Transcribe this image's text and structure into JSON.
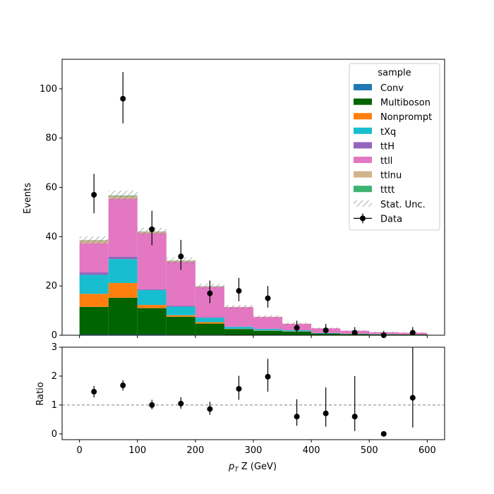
{
  "chart_data": {
    "type": "bar",
    "stacked": true,
    "x_bin_edges": [
      0,
      50,
      100,
      150,
      200,
      250,
      300,
      350,
      400,
      450,
      500,
      550,
      600
    ],
    "series": [
      {
        "name": "Conv",
        "color": "#1f77b4",
        "values": [
          0.3,
          0.3,
          0.3,
          0.2,
          0.2,
          0.1,
          0.1,
          0.1,
          0.0,
          0.0,
          0.0,
          0.0
        ]
      },
      {
        "name": "Multiboson",
        "color": "#006400",
        "values": [
          11.2,
          14.9,
          10.7,
          7.3,
          4.5,
          2.4,
          1.7,
          1.4,
          0.7,
          0.5,
          0.3,
          0.3
        ]
      },
      {
        "name": "Nonprompt",
        "color": "#ff7f0e",
        "values": [
          5.3,
          6.0,
          1.3,
          0.6,
          0.6,
          0.1,
          0.1,
          0.1,
          0.0,
          0.0,
          0.0,
          0.0
        ]
      },
      {
        "name": "tXq",
        "color": "#17becf",
        "values": [
          7.7,
          9.7,
          6.0,
          3.5,
          1.8,
          0.8,
          0.6,
          0.4,
          0.2,
          0.1,
          0.1,
          0.0
        ]
      },
      {
        "name": "ttH",
        "color": "#9467bd",
        "values": [
          1.0,
          1.0,
          0.4,
          0.3,
          0.2,
          0.1,
          0.1,
          0.1,
          0.0,
          0.0,
          0.0,
          0.0
        ]
      },
      {
        "name": "ttll",
        "color": "#e377c2",
        "values": [
          11.8,
          23.5,
          22.7,
          17.9,
          12.3,
          7.9,
          4.8,
          2.5,
          1.9,
          1.2,
          0.8,
          0.7
        ]
      },
      {
        "name": "ttlnu",
        "color": "#d2b48c",
        "values": [
          1.2,
          1.1,
          0.6,
          0.4,
          0.2,
          0.1,
          0.1,
          0.1,
          0.0,
          0.0,
          0.0,
          0.0
        ]
      },
      {
        "name": "tttt",
        "color": "#3cb371",
        "values": [
          0.1,
          0.2,
          0.1,
          0.1,
          0.1,
          0.0,
          0.0,
          0.0,
          0.0,
          0.0,
          0.0,
          0.0
        ]
      }
    ],
    "stat_unc": [
      1.5,
      2.0,
      1.5,
      1.3,
      1.0,
      0.8,
      0.6,
      0.5,
      0.4,
      0.3,
      0.3,
      0.3
    ],
    "data": {
      "name": "Data",
      "x": [
        25,
        75,
        125,
        175,
        225,
        275,
        325,
        375,
        425,
        475,
        525,
        575
      ],
      "y": [
        57,
        96,
        43,
        32,
        17,
        18,
        15,
        3,
        2,
        1,
        0,
        1
      ],
      "yerr_low": [
        7.5,
        10.0,
        6.5,
        5.5,
        4.0,
        4.2,
        3.8,
        1.6,
        1.3,
        1.0,
        0.0,
        1.0
      ],
      "yerr_high": [
        8.5,
        10.8,
        7.5,
        6.7,
        5.2,
        5.3,
        5.0,
        2.9,
        2.6,
        2.3,
        1.8,
        2.3
      ]
    },
    "ratio": {
      "y": [
        1.46,
        1.68,
        1.0,
        1.05,
        0.86,
        1.56,
        1.98,
        0.6,
        0.71,
        0.6,
        0.0,
        1.25
      ],
      "yerr_low": [
        0.2,
        0.18,
        0.15,
        0.18,
        0.2,
        0.38,
        0.52,
        0.32,
        0.46,
        0.5,
        0.0,
        1.03
      ],
      "yerr_high": [
        0.2,
        0.18,
        0.18,
        0.22,
        0.25,
        0.45,
        0.62,
        0.6,
        0.9,
        1.4,
        0.0,
        1.9
      ],
      "reference": 1.0
    },
    "xlabel_main": "p",
    "xlabel_sub": "T",
    "xlabel_rest": " Z (GeV)",
    "ylabel": "Events",
    "ratio_ylabel": "Ratio",
    "xlim": [
      -30,
      630
    ],
    "ylim": [
      0,
      112
    ],
    "ratio_ylim": [
      -0.2,
      3
    ],
    "xticks": [
      0,
      100,
      200,
      300,
      400,
      500,
      600
    ],
    "yticks": [
      0,
      20,
      40,
      60,
      80,
      100
    ],
    "ratio_yticks": [
      0,
      1,
      2,
      3
    ],
    "legend": {
      "title": "sample",
      "placement": "top-right",
      "stat_unc_label": "Stat. Unc."
    },
    "grid": false
  }
}
